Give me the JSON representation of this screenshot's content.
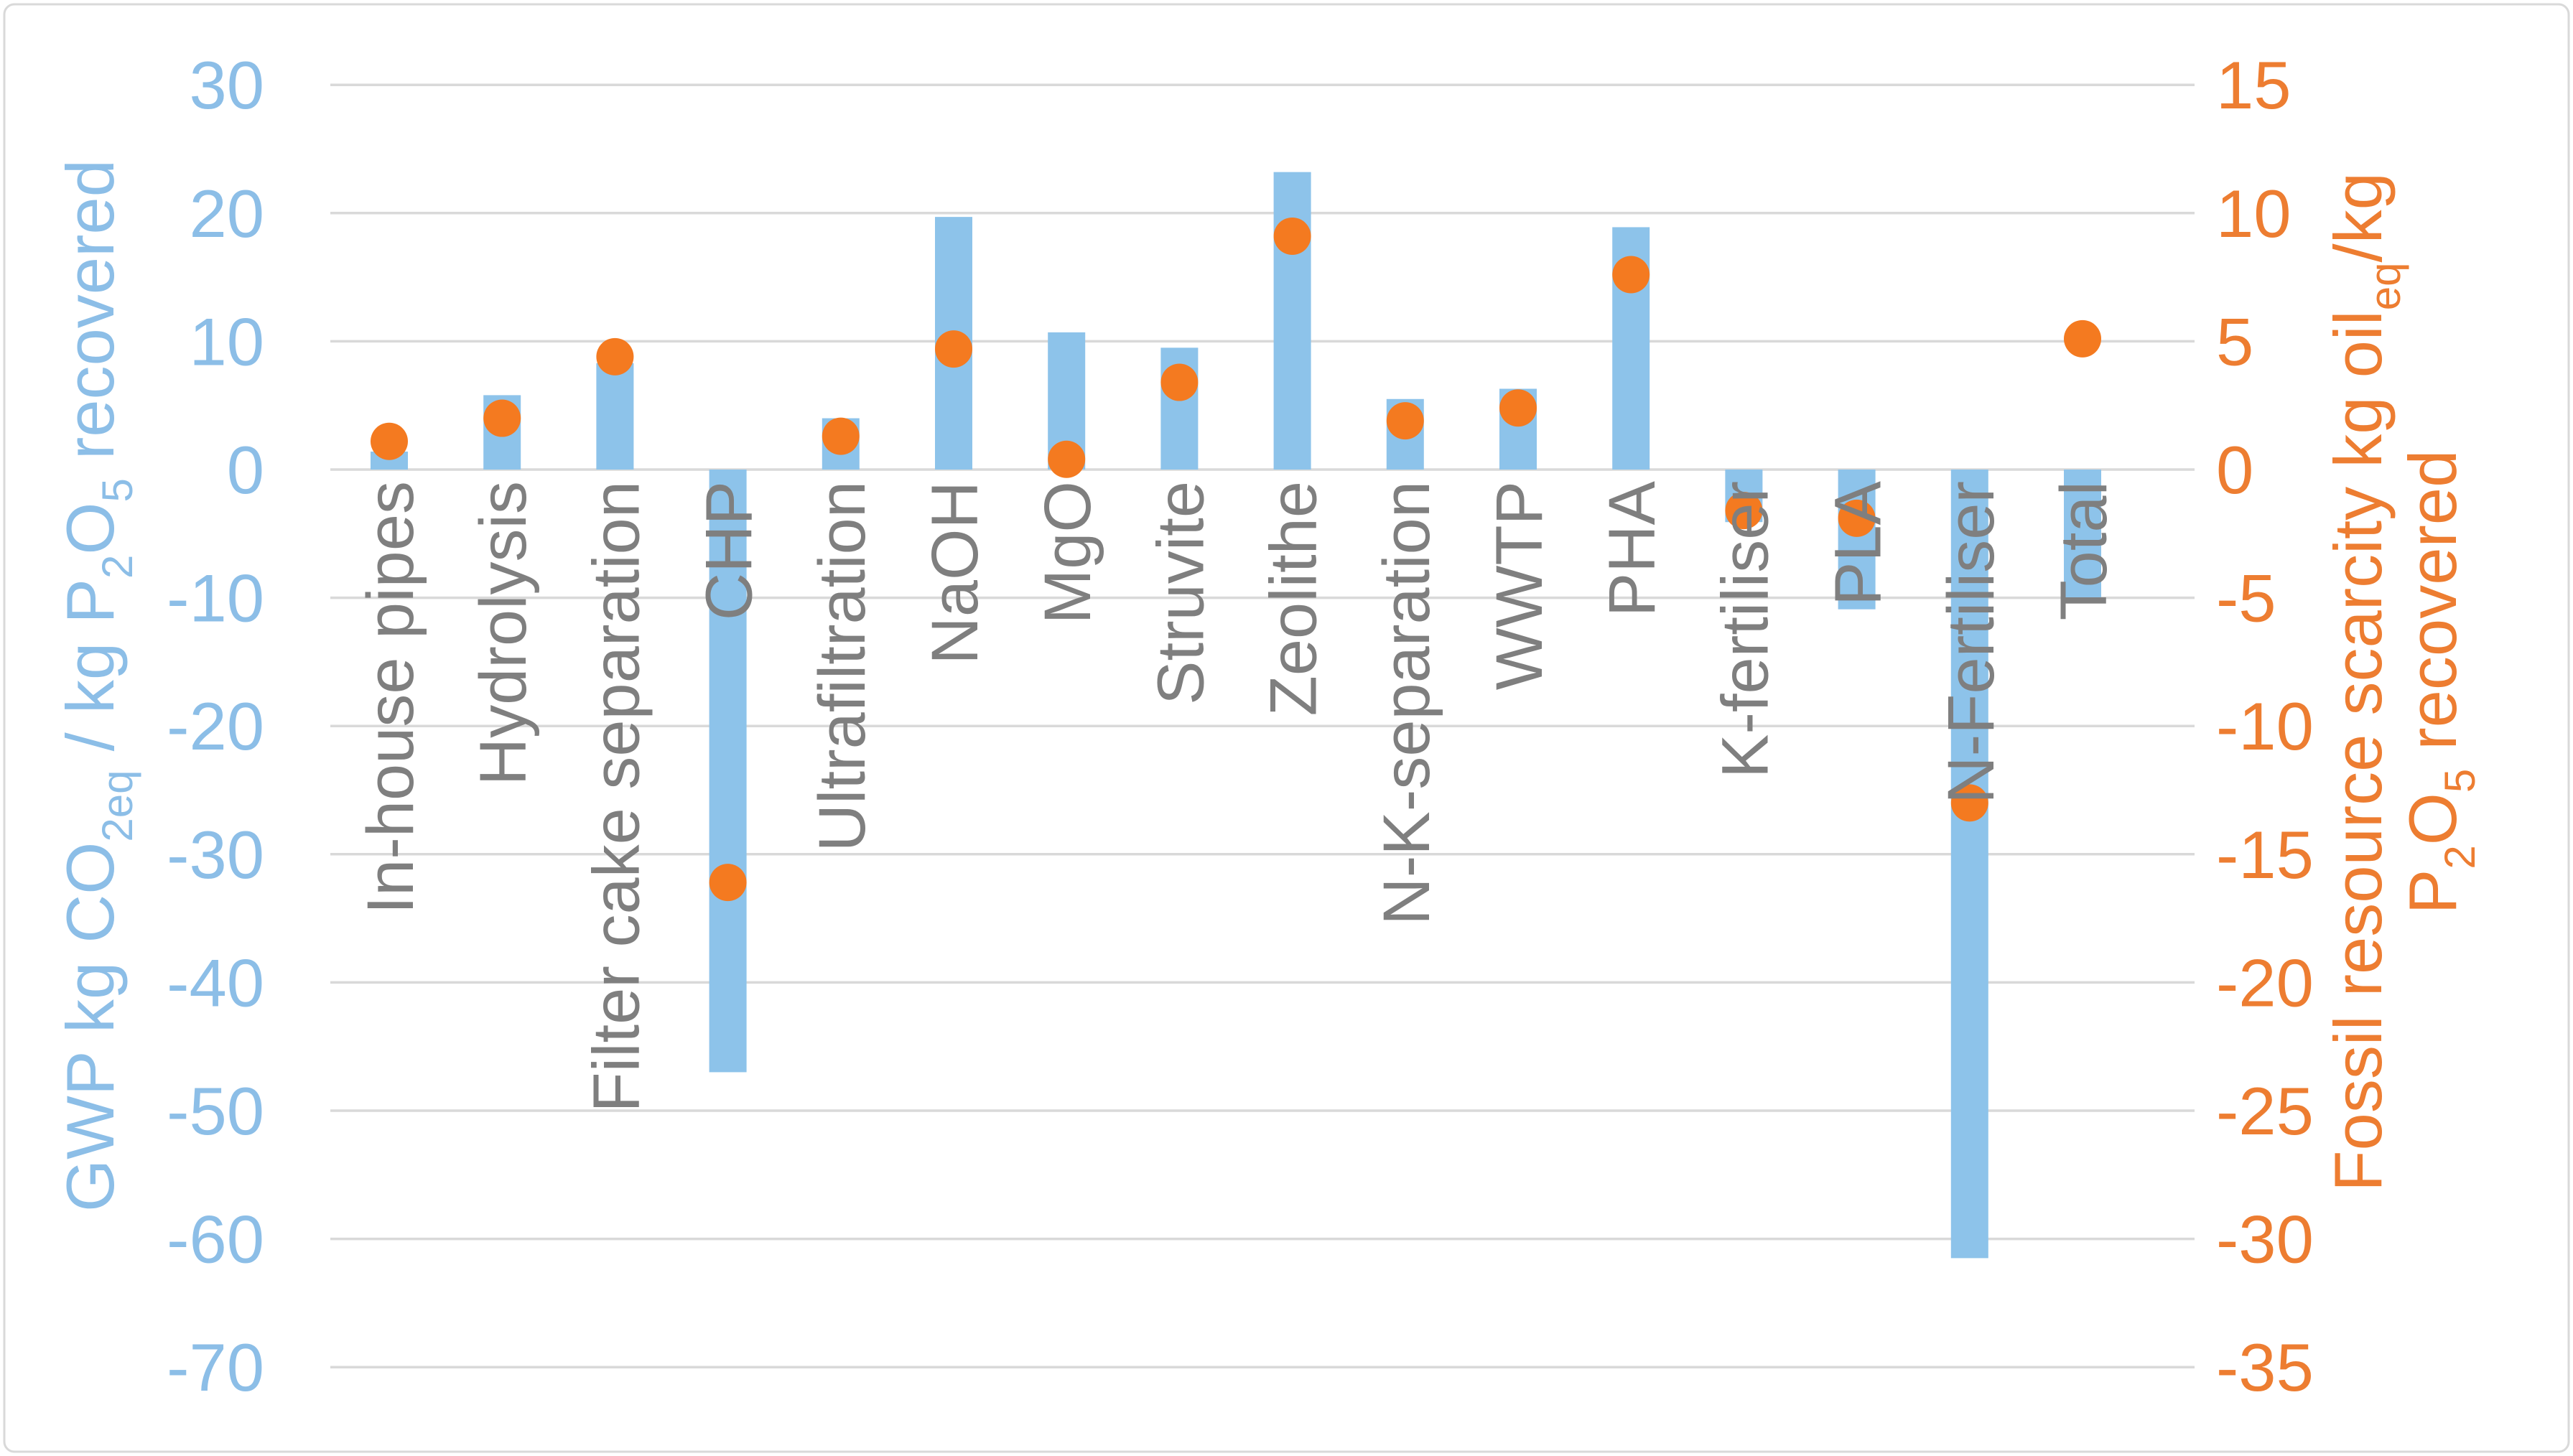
{
  "chart_data": {
    "type": "combo-bar-scatter",
    "title": "",
    "legend": "none",
    "grid": true,
    "background": "#FFFFFF",
    "categories": [
      "In-house pipes",
      "Hydrolysis",
      "Filter cake separation",
      "CHP",
      "Ultrafiltration",
      "NaOH",
      "MgO",
      "Struvite",
      "Zeolithe",
      "N-K-separation",
      "WWTP",
      "PHA",
      "K-fertiliser",
      "PLA",
      "N-Fertiliser",
      "Total"
    ],
    "series": [
      {
        "name": "GWP kg CO2eq / kg P2O5 recovered",
        "type": "bar",
        "axis": "left",
        "values": [
          1.4,
          5.8,
          8.3,
          -47.0,
          4.0,
          19.7,
          10.7,
          9.5,
          23.2,
          5.5,
          6.3,
          18.9,
          -4.1,
          -10.9,
          -61.5,
          -10.0
        ]
      },
      {
        "name": "Fossil resource scarcity kg oileq/kg P2O5 recovered",
        "type": "scatter",
        "axis": "right",
        "values": [
          1.1,
          2.0,
          4.4,
          -16.1,
          1.3,
          4.7,
          0.4,
          3.4,
          9.1,
          1.9,
          2.4,
          7.6,
          -1.6,
          -1.9,
          -13.0,
          5.1
        ]
      }
    ],
    "left_axis": {
      "range": [
        -70,
        30
      ],
      "ticks": [
        30,
        20,
        10,
        0,
        -10,
        -20,
        -30,
        -40,
        -50,
        -60,
        -70
      ],
      "title": "GWP kg CO2eq / kg P2O5 recovered",
      "title_parts": [
        {
          "t": "GWP kg CO"
        },
        {
          "t": "2eq",
          "sub": true
        },
        {
          "t": " / kg P"
        },
        {
          "t": "2",
          "sub": true
        },
        {
          "t": "O"
        },
        {
          "t": "5",
          "sub": true
        },
        {
          "t": " recovered"
        }
      ]
    },
    "right_axis": {
      "range": [
        -35,
        15
      ],
      "ticks": [
        15,
        10,
        5,
        0,
        -5,
        -10,
        -15,
        -20,
        -25,
        -30,
        -35
      ],
      "title": "Fossil resource scarcity kg oileq/kg P2O5 recovered",
      "title_lines": [
        [
          {
            "t": "Fossil resource scarcity kg oil"
          },
          {
            "t": "eq",
            "sub": true
          },
          {
            "t": "/kg"
          }
        ],
        [
          {
            "t": "P"
          },
          {
            "t": "2",
            "sub": true
          },
          {
            "t": "O"
          },
          {
            "t": "5",
            "sub": true
          },
          {
            "t": " recovered"
          }
        ]
      ]
    }
  },
  "colors": {
    "bar": "#8DC3EA",
    "point": "#F47A20",
    "gridline": "#D9D9D9",
    "frame_border": "#D9D9D9",
    "left_axis_text": "#8CBEE7",
    "right_axis_text": "#ED7D31",
    "category_text": "#7F7F7F"
  }
}
